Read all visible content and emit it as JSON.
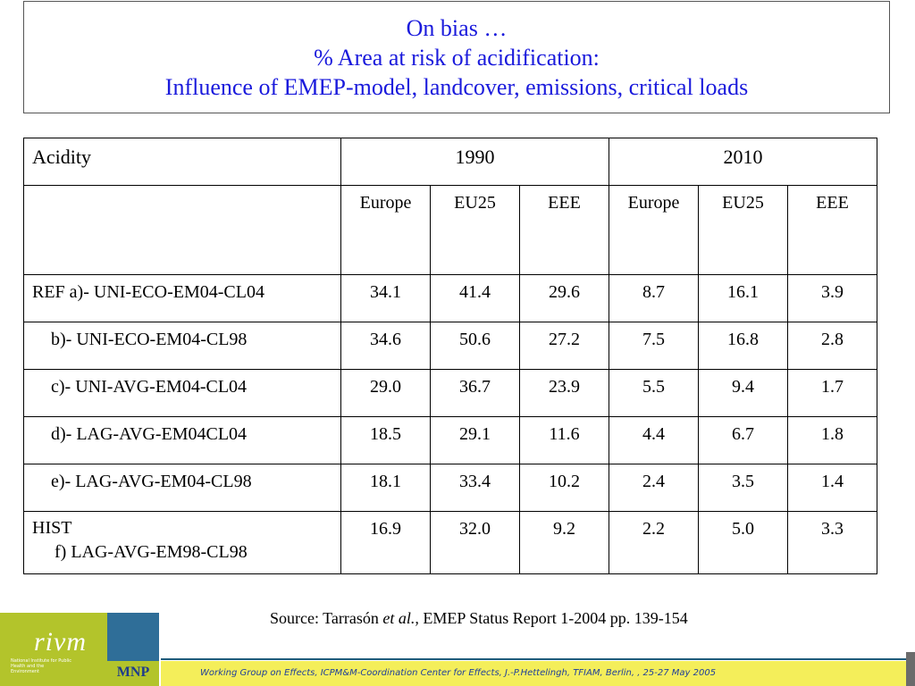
{
  "title": {
    "line1": "On bias …",
    "line2": "% Area at risk of acidification:",
    "line3": "Influence of EMEP-model, landcover, emissions, critical loads"
  },
  "table": {
    "corner": "Acidity",
    "years": [
      "1990",
      "2010"
    ],
    "subheaders": [
      "Europe",
      "EU25",
      "EEE",
      "Europe",
      "EU25",
      "EEE"
    ],
    "rows": [
      {
        "label": "REF a)- UNI-ECO-EM04-CL04",
        "values": [
          "34.1",
          "41.4",
          "29.6",
          "8.7",
          "16.1",
          "3.9"
        ]
      },
      {
        "label": "b)- UNI-ECO-EM04-CL98",
        "values": [
          "34.6",
          "50.6",
          "27.2",
          "7.5",
          "16.8",
          "2.8"
        ]
      },
      {
        "label": "c)- UNI-AVG-EM04-CL04",
        "values": [
          "29.0",
          "36.7",
          "23.9",
          "5.5",
          "9.4",
          "1.7"
        ]
      },
      {
        "label": "d)- LAG-AVG-EM04CL04",
        "values": [
          "18.5",
          "29.1",
          "11.6",
          "4.4",
          "6.7",
          "1.8"
        ]
      },
      {
        "label": "e)- LAG-AVG-EM04-CL98",
        "values": [
          "18.1",
          "33.4",
          "10.2",
          "2.4",
          "3.5",
          "1.4"
        ]
      },
      {
        "label": "HIST",
        "label2": "f) LAG-AVG-EM98-CL98",
        "values": [
          "16.9",
          "32.0",
          "9.2",
          "2.2",
          "5.0",
          "3.3"
        ]
      }
    ]
  },
  "source": {
    "prefix": "Source: Tarrasón ",
    "italic": "et al.,",
    "suffix": " EMEP Status Report 1-2004 pp. 139-154"
  },
  "footer": {
    "text": "Working Group on Effects, ICPM&M-Coordination Center for Effects, J.-P.Hettelingh, TFIAM, Berlin, , 25-27 May  2005"
  },
  "logos": {
    "rivm": "rivm",
    "institute": "National Institute for Public Health and the Environment",
    "mnp": "MNP"
  }
}
